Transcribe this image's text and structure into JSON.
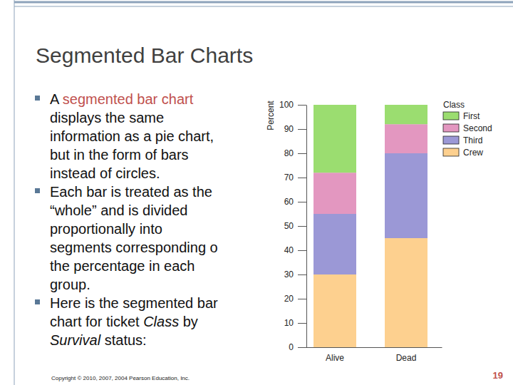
{
  "slide": {
    "title": "Segmented Bar Charts",
    "bullets": [
      [
        [
          {
            "text": "A "
          },
          {
            "text": "segmented bar chart",
            "style": "highlight"
          }
        ],
        [
          {
            "text": "displays the same"
          }
        ],
        [
          {
            "text": "information as a pie chart,"
          }
        ],
        [
          {
            "text": "but in the form of bars"
          }
        ],
        [
          {
            "text": "instead of circles."
          }
        ]
      ],
      [
        [
          {
            "text": "Each bar is treated as the"
          }
        ],
        [
          {
            "text": "“whole” and is divided"
          }
        ],
        [
          {
            "text": "proportionally into"
          }
        ],
        [
          {
            "text": "segments corresponding o"
          }
        ],
        [
          {
            "text": "the percentage in each"
          }
        ],
        [
          {
            "text": "group."
          }
        ]
      ],
      [
        [
          {
            "text": "Here is the segmented bar"
          }
        ],
        [
          {
            "text": "chart for ticket "
          },
          {
            "text": "Class",
            "style": "italic"
          },
          {
            "text": " by"
          }
        ],
        [
          {
            "text": "Survival",
            "style": "italic"
          },
          {
            "text": " status:"
          }
        ]
      ]
    ],
    "footer": "Copyright © 2010, 2007, 2004 Pearson Education, Inc.",
    "page_number": 19
  },
  "chart_data": {
    "type": "bar",
    "stacked": true,
    "y_label": "Percent",
    "categories": [
      "Alive",
      "Dead"
    ],
    "series": [
      {
        "name": "First",
        "color": "#9bdd70",
        "values": [
          28,
          8
        ]
      },
      {
        "name": "Second",
        "color": "#e397c0",
        "values": [
          17,
          12
        ]
      },
      {
        "name": "Third",
        "color": "#9b98d6",
        "values": [
          25,
          35
        ]
      },
      {
        "name": "Crew",
        "color": "#fdd08f",
        "values": [
          30,
          45
        ]
      }
    ],
    "ylim": [
      0,
      100
    ],
    "yticks": [
      0,
      10,
      20,
      30,
      40,
      50,
      60,
      70,
      80,
      90,
      100
    ],
    "grid": false,
    "legend": "right",
    "legend_title": "Class"
  }
}
